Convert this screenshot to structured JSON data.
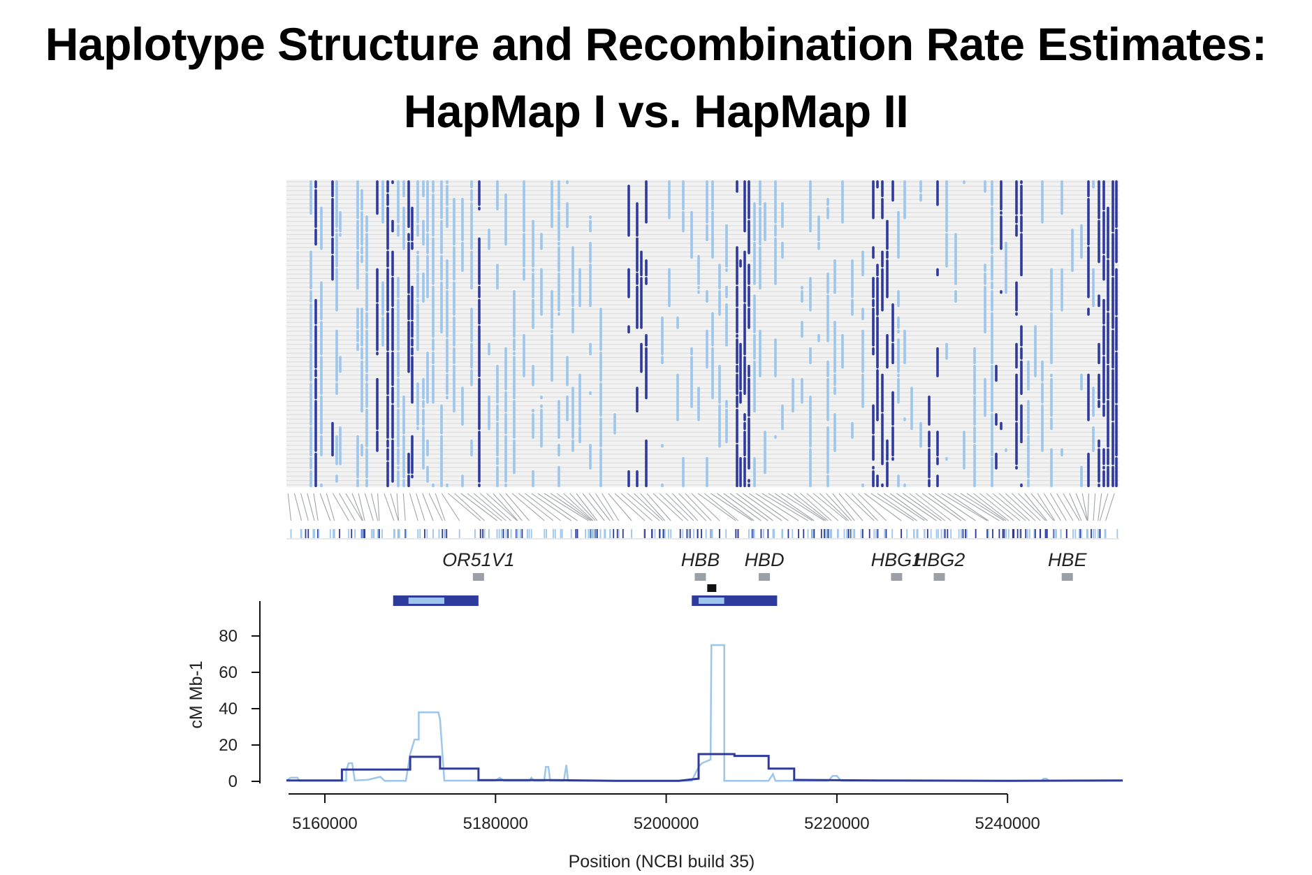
{
  "title": {
    "line1": "Haplotype Structure and Recombination Rate Estimates:",
    "line2": "HapMap I vs. HapMap II"
  },
  "colors": {
    "dark_blue": "#2e3a9c",
    "light_blue": "#9cc6ec",
    "gray": "#9aa0a6",
    "black": "#111111"
  },
  "chart_data": [
    {
      "type": "heatmap",
      "description_rows": 70,
      "genes": [
        {
          "name": "OR51V1",
          "position": 5178000
        },
        {
          "name": "HBB",
          "position": 5204000
        },
        {
          "name": "HBD",
          "position": 5211500
        },
        {
          "name": "HBG1",
          "position": 5227000
        },
        {
          "name": "HBG2",
          "position": 5232000
        },
        {
          "name": "HBE",
          "position": 5247000
        }
      ],
      "hotspots": [
        {
          "start": 5168000,
          "end": 5178000,
          "core_start": 5169800,
          "core_end": 5174000
        },
        {
          "start": 5203000,
          "end": 5213000,
          "core_start": 5203800,
          "core_end": 5206800
        }
      ],
      "hotspot_marker_position": 5205300
    },
    {
      "type": "line",
      "title": "",
      "xlabel": "Position (NCBI build 35)",
      "ylabel": "cM Mb-1",
      "xlim": [
        5155000,
        5253500
      ],
      "ylim": [
        0,
        80
      ],
      "x_ticks": [
        5160000,
        5180000,
        5200000,
        5220000,
        5240000
      ],
      "y_ticks": [
        0,
        20,
        40,
        60,
        80
      ],
      "series": [
        {
          "color": "#2e3a9c",
          "points": [
            [
              5155500,
              0.5
            ],
            [
              5162000,
              0.5
            ],
            [
              5162000,
              6.5
            ],
            [
              5170000,
              6.5
            ],
            [
              5170000,
              13.5
            ],
            [
              5173500,
              13.5
            ],
            [
              5173500,
              7
            ],
            [
              5178000,
              7
            ],
            [
              5178000,
              0.7
            ],
            [
              5187000,
              0.7
            ],
            [
              5194000,
              0.3
            ],
            [
              5201500,
              0.3
            ],
            [
              5203800,
              1.5
            ],
            [
              5203800,
              15
            ],
            [
              5208000,
              15
            ],
            [
              5208000,
              14
            ],
            [
              5212000,
              14
            ],
            [
              5212000,
              7
            ],
            [
              5215000,
              7
            ],
            [
              5215000,
              0.8
            ],
            [
              5225000,
              0.5
            ],
            [
              5240000,
              0.3
            ],
            [
              5253500,
              0.5
            ]
          ]
        },
        {
          "color": "#9cc6ec",
          "points": [
            [
              5155500,
              0.5
            ],
            [
              5156000,
              2
            ],
            [
              5156800,
              2
            ],
            [
              5157000,
              0.3
            ],
            [
              5162500,
              0.3
            ],
            [
              5162500,
              6
            ],
            [
              5162800,
              10
            ],
            [
              5163200,
              10
            ],
            [
              5163500,
              0.5
            ],
            [
              5165000,
              0.8
            ],
            [
              5166500,
              2.5
            ],
            [
              5167000,
              0.3
            ],
            [
              5169500,
              0.3
            ],
            [
              5170000,
              15
            ],
            [
              5170500,
              23
            ],
            [
              5171000,
              23
            ],
            [
              5171000,
              38
            ],
            [
              5173300,
              38
            ],
            [
              5173500,
              34
            ],
            [
              5174000,
              0.4
            ],
            [
              5180000,
              0.4
            ],
            [
              5180500,
              2
            ],
            [
              5181000,
              0.3
            ],
            [
              5184000,
              0.3
            ],
            [
              5184200,
              2
            ],
            [
              5184500,
              0.3
            ],
            [
              5185700,
              0.3
            ],
            [
              5185900,
              8
            ],
            [
              5186200,
              8
            ],
            [
              5186400,
              0.3
            ],
            [
              5188000,
              0.3
            ],
            [
              5188300,
              9
            ],
            [
              5188500,
              0.3
            ],
            [
              5203000,
              0.3
            ],
            [
              5203800,
              8
            ],
            [
              5204200,
              10
            ],
            [
              5205200,
              12
            ],
            [
              5205300,
              75
            ],
            [
              5206800,
              75
            ],
            [
              5206800,
              0.3
            ],
            [
              5210000,
              0.3
            ],
            [
              5212000,
              0.3
            ],
            [
              5212500,
              4
            ],
            [
              5212800,
              0.3
            ],
            [
              5219000,
              0.3
            ],
            [
              5219500,
              3
            ],
            [
              5220000,
              3
            ],
            [
              5220500,
              0.3
            ],
            [
              5244000,
              0.3
            ],
            [
              5244200,
              1.5
            ],
            [
              5244600,
              1.5
            ],
            [
              5244800,
              0.3
            ],
            [
              5253500,
              0.3
            ]
          ]
        }
      ]
    }
  ]
}
